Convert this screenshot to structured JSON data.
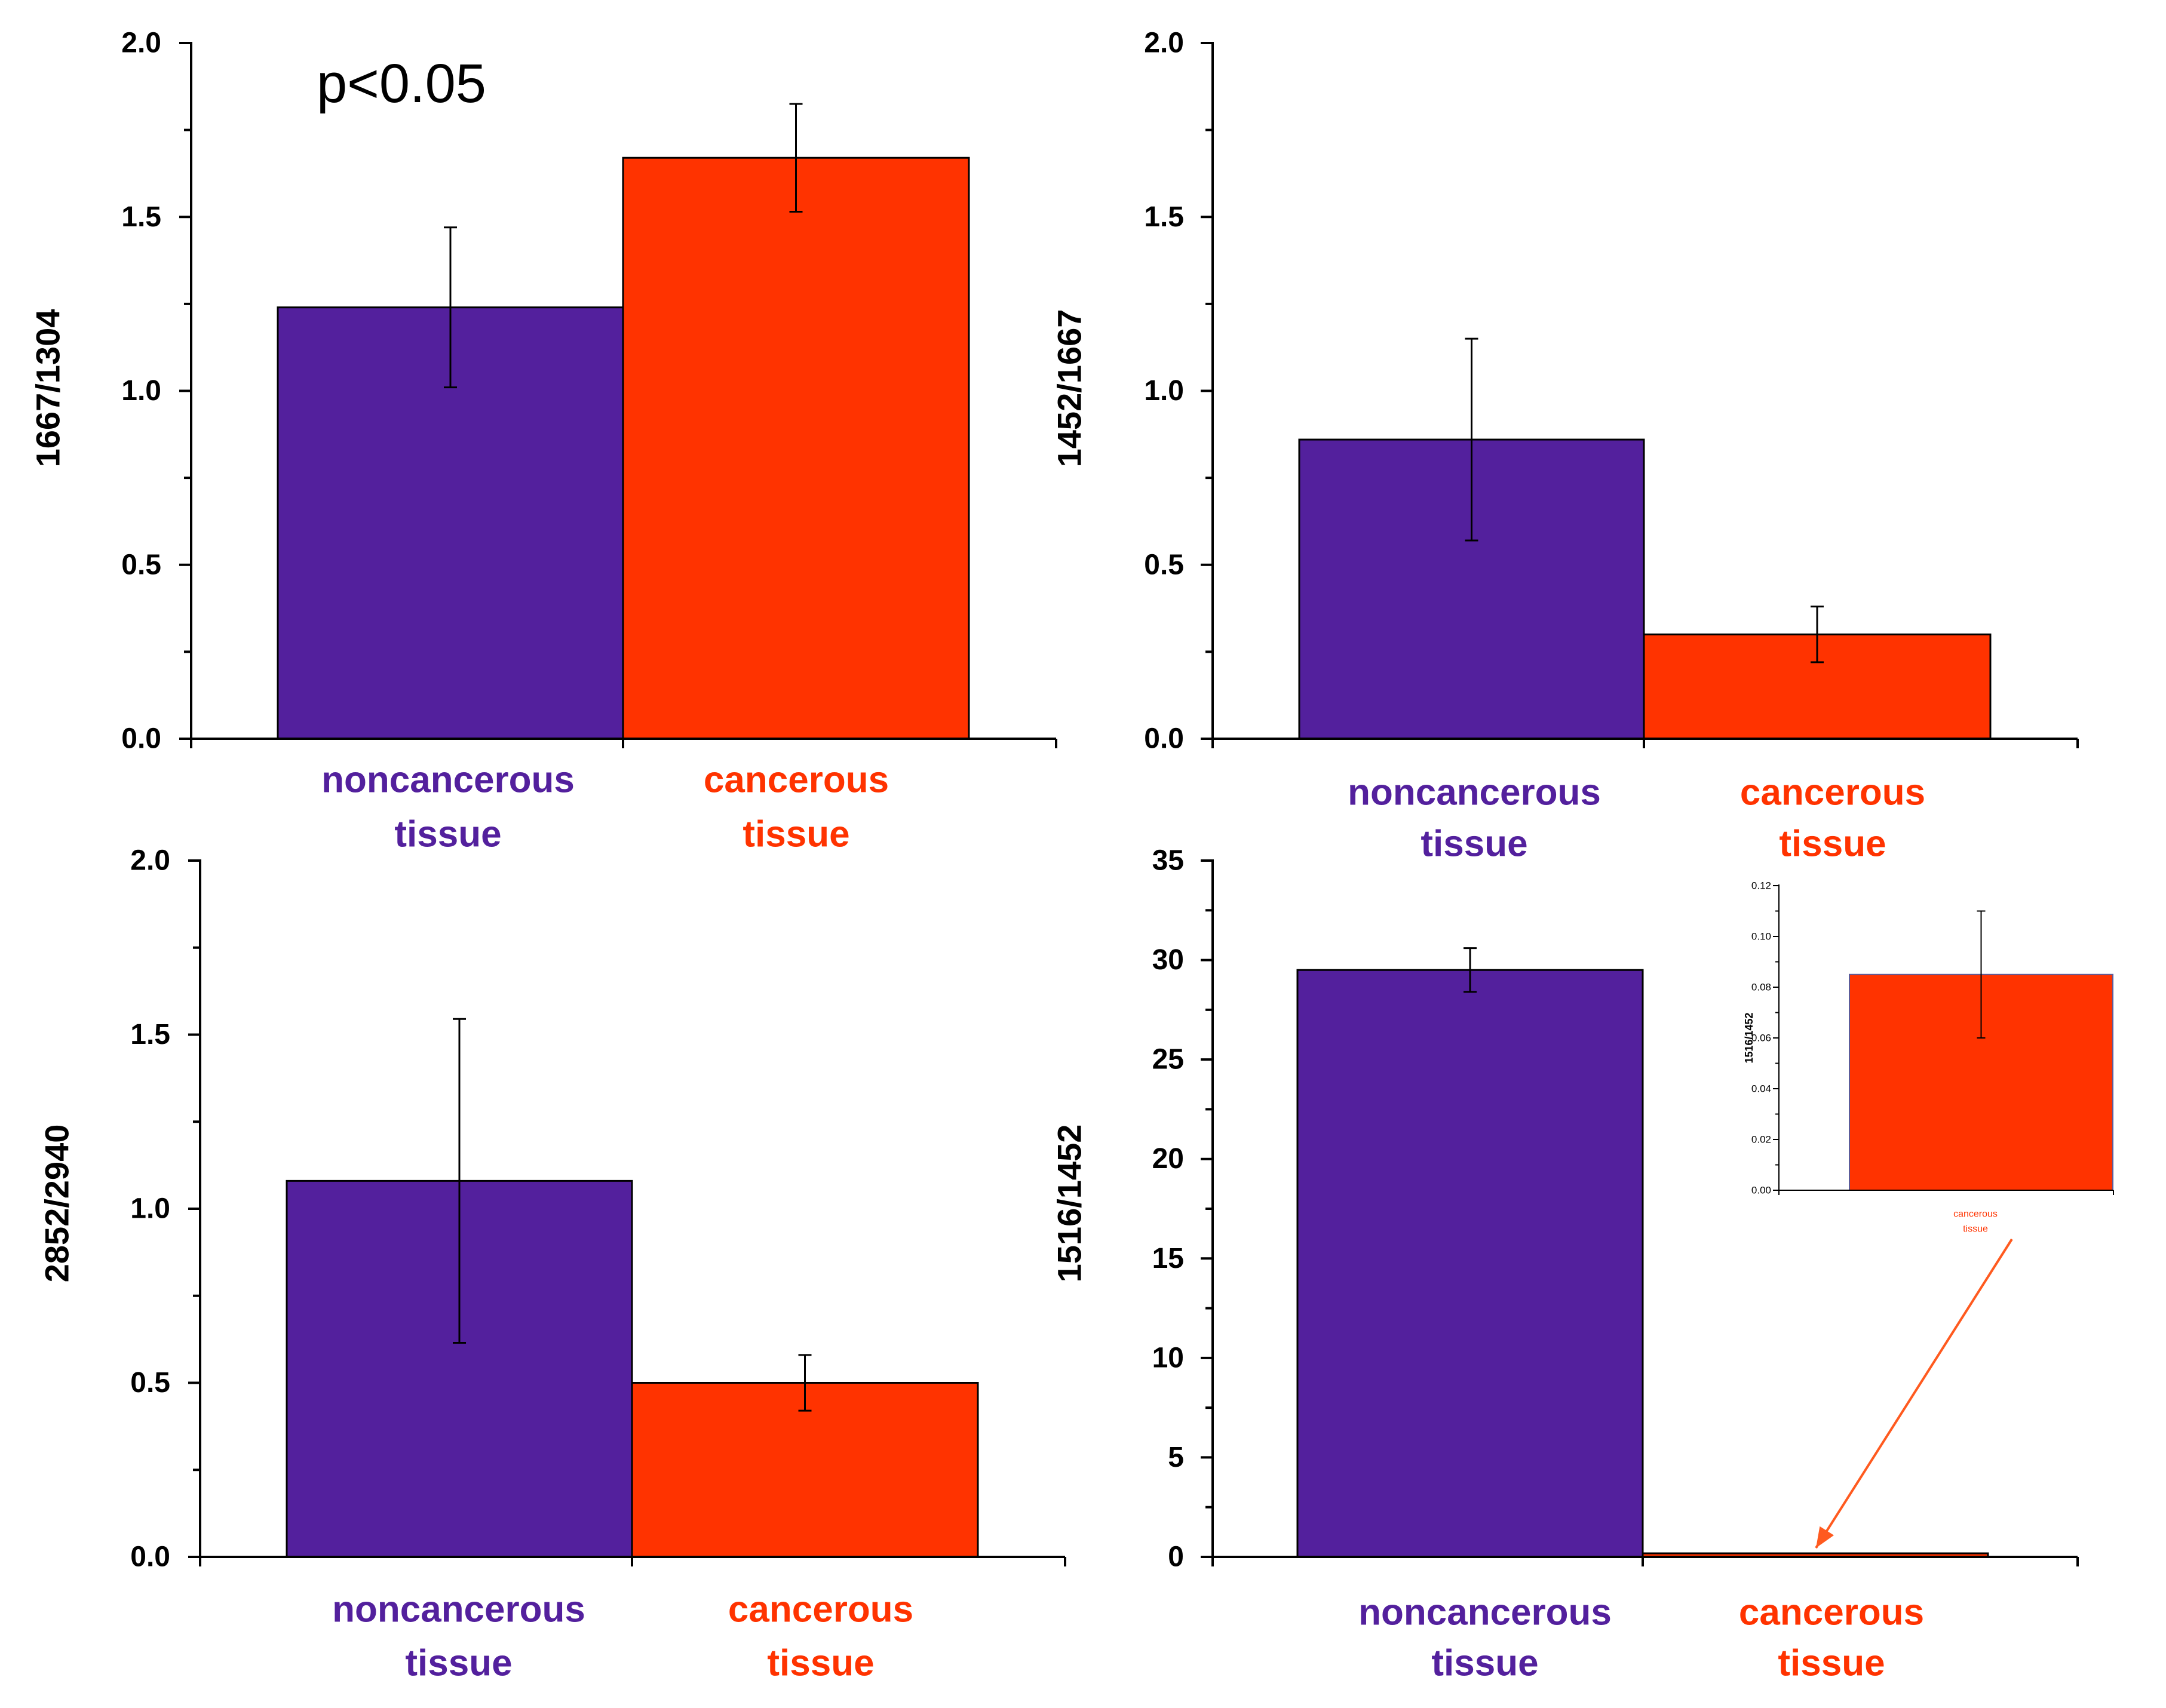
{
  "colors": {
    "noncancerous": "#53209D",
    "cancerous": "#FF3300",
    "axis": "#000000",
    "arrow": "#FF5A1F"
  },
  "chart_data": [
    {
      "id": "top-left",
      "type": "bar",
      "ylabel": "1667/1304",
      "ylim": [
        0,
        2.0
      ],
      "yticks": [
        "0.0",
        "0.5",
        "1.0",
        "1.5",
        "2.0"
      ],
      "annotation": "p<0.05",
      "categories": [
        {
          "line1": "noncancerous",
          "line2": "tissue"
        },
        {
          "line1": "cancerous",
          "line2": "tissue"
        }
      ],
      "values": [
        1.24,
        1.67
      ],
      "errors": [
        0.23,
        0.155
      ]
    },
    {
      "id": "top-right",
      "type": "bar",
      "ylabel": "1452/1667",
      "ylim": [
        0,
        2.0
      ],
      "yticks": [
        "0.0",
        "0.5",
        "1.0",
        "1.5",
        "2.0"
      ],
      "categories": [
        {
          "line1": "noncancerous",
          "line2": "tissue"
        },
        {
          "line1": "cancerous",
          "line2": "tissue"
        }
      ],
      "values": [
        0.86,
        0.3
      ],
      "errors": [
        0.29,
        0.08
      ]
    },
    {
      "id": "bottom-left",
      "type": "bar",
      "ylabel": "2852/2940",
      "ylim": [
        0,
        2.0
      ],
      "yticks": [
        "0.0",
        "0.5",
        "1.0",
        "1.5",
        "2.0"
      ],
      "categories": [
        {
          "line1": "noncancerous",
          "line2": "tissue"
        },
        {
          "line1": "cancerous",
          "line2": "tissue"
        }
      ],
      "values": [
        1.08,
        0.5
      ],
      "errors": [
        0.465,
        0.08
      ]
    },
    {
      "id": "bottom-right",
      "type": "bar",
      "ylabel": "1516/1452",
      "ylim": [
        0,
        35
      ],
      "yticks": [
        "0",
        "5",
        "10",
        "15",
        "20",
        "25",
        "30",
        "35"
      ],
      "categories": [
        {
          "line1": "noncancerous",
          "line2": "tissue"
        },
        {
          "line1": "cancerous",
          "line2": "tissue"
        }
      ],
      "values": [
        29.5,
        0.085
      ],
      "errors": [
        1.1,
        0.025
      ],
      "inset": {
        "type": "bar",
        "ylabel": "1516/1452",
        "ylim": [
          0,
          0.12
        ],
        "yticks": [
          "0.00",
          "0.02",
          "0.04",
          "0.06",
          "0.08",
          "0.10",
          "0.12"
        ],
        "categories": [
          {
            "line1": "cancerous",
            "line2": "tissue"
          }
        ],
        "values": [
          0.085
        ],
        "errors": [
          0.025
        ]
      }
    }
  ]
}
